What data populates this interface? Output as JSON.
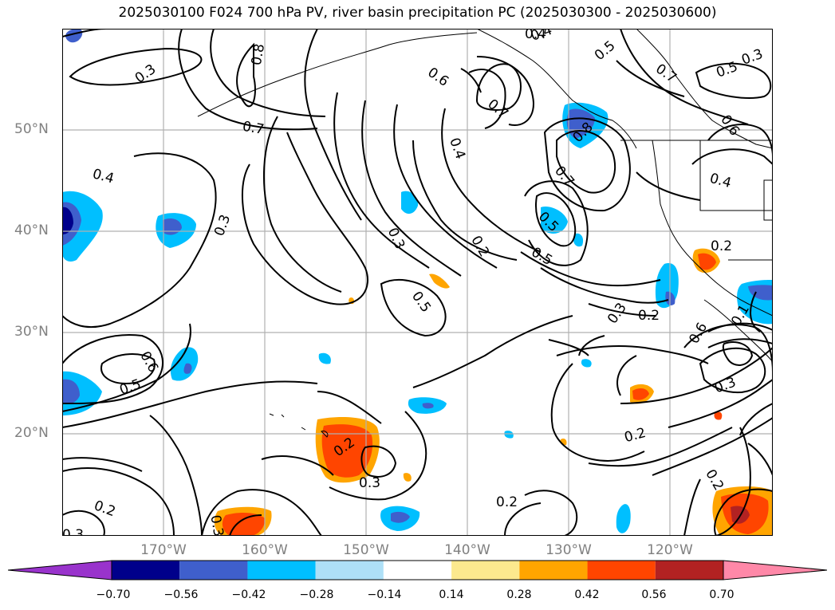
{
  "title": "2025030100 F024 700 hPa PV, river basin precipitation PC (2025030300 - 2025030600)",
  "latitude_labels": [
    "50°N",
    "40°N",
    "30°N",
    "20°N"
  ],
  "longitude_labels": [
    "170°W",
    "160°W",
    "150°W",
    "140°W",
    "130°W",
    "120°W"
  ],
  "colorbar": {
    "ticks": [
      "−0.70",
      "−0.56",
      "−0.42",
      "−0.28",
      "−0.14",
      "0.14",
      "0.28",
      "0.42",
      "0.56",
      "0.70"
    ],
    "colors": [
      "#9933cc",
      "#00008b",
      "#3f5fcc",
      "#00bfff",
      "#aee0f7",
      "#ffffff",
      "#fce98e",
      "#ffa500",
      "#ff4500",
      "#b22222",
      "#ff88a8"
    ]
  },
  "contour_labels": [
    "0.3",
    "0.8",
    "0.4",
    "0.5",
    "0.6",
    "0.7",
    "0.7",
    "0.4",
    "0.6",
    "0.2",
    "0.3",
    "0.5",
    "0.8",
    "0.7",
    "0.5",
    "0.5",
    "0.7",
    "0.4",
    "0.4",
    "0.3",
    "0.3",
    "0.2",
    "0.5",
    "0.2",
    "0.3",
    "0.4",
    "0.6",
    "0.5",
    "0.6",
    "0.1",
    "0.3",
    "0.2",
    "0.2",
    "0.3",
    "0.2",
    "0.2",
    "0.2",
    "0.3",
    "0.3"
  ],
  "colors": {
    "contour": "#000000",
    "gridline": "#b0b0b0",
    "axis_label": "#808080"
  }
}
